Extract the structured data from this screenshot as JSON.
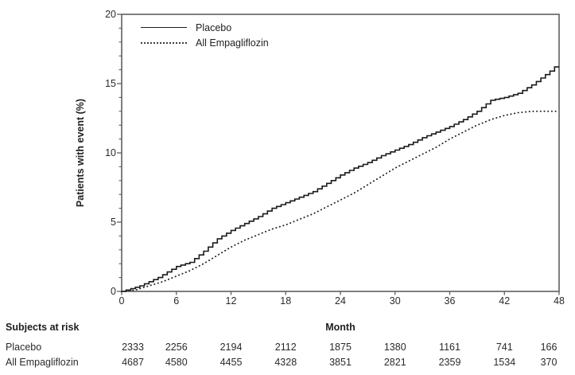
{
  "chart_data": {
    "type": "line",
    "subtype": "kaplan-meier-cumulative-incidence",
    "title": "",
    "xlabel": "Month",
    "ylabel": "Patients with event (%)",
    "xlim": [
      0,
      48
    ],
    "ylim": [
      0,
      20
    ],
    "x_ticks": [
      0,
      6,
      12,
      18,
      24,
      30,
      36,
      42,
      48
    ],
    "y_ticks": [
      0,
      5,
      10,
      15,
      20
    ],
    "y_minor_tick_step": 1,
    "grid": false,
    "frame": "full-box",
    "legend_position": "top-left-inside",
    "series": [
      {
        "name": "Placebo",
        "line_style": "solid",
        "color": "#1a1a1a",
        "interpolation": "step-after",
        "x": [
          0,
          1,
          2,
          3,
          4,
          5,
          6,
          7.5,
          9,
          10.5,
          12,
          13.5,
          15,
          16.5,
          18,
          19.5,
          21,
          22.5,
          24,
          25.5,
          27,
          28.5,
          30,
          31.5,
          33,
          34.5,
          36,
          37.5,
          39,
          40.5,
          42,
          43.5,
          45,
          46,
          47,
          47.5,
          48
        ],
        "y": [
          0,
          0.2,
          0.4,
          0.7,
          1.0,
          1.4,
          1.8,
          2.1,
          2.9,
          3.8,
          4.4,
          4.9,
          5.4,
          6.0,
          6.4,
          6.8,
          7.2,
          7.8,
          8.4,
          8.9,
          9.3,
          9.8,
          10.2,
          10.6,
          11.1,
          11.5,
          11.9,
          12.4,
          13.0,
          13.8,
          14.0,
          14.3,
          14.9,
          15.4,
          15.9,
          16.2,
          16.2
        ]
      },
      {
        "name": "All Empagliflozin",
        "line_style": "dotted",
        "color": "#1a1a1a",
        "interpolation": "linear",
        "x": [
          0,
          1.5,
          3,
          4.5,
          6,
          7.5,
          9,
          10.5,
          12,
          13.5,
          15,
          16.5,
          18,
          19.5,
          21,
          22.5,
          24,
          25.5,
          27,
          28.5,
          30,
          31.5,
          33,
          34.5,
          36,
          37.5,
          39,
          40.5,
          42,
          43.5,
          45,
          48
        ],
        "y": [
          0,
          0.1,
          0.4,
          0.7,
          1.1,
          1.5,
          2.0,
          2.6,
          3.2,
          3.7,
          4.1,
          4.5,
          4.8,
          5.2,
          5.6,
          6.1,
          6.6,
          7.1,
          7.7,
          8.3,
          8.9,
          9.4,
          9.9,
          10.4,
          11.0,
          11.5,
          12.0,
          12.4,
          12.7,
          12.9,
          13.0,
          13.0
        ]
      }
    ]
  },
  "risk_table": {
    "heading": "Subjects at risk",
    "months": [
      0,
      6,
      12,
      18,
      24,
      30,
      36,
      42,
      48
    ],
    "rows": [
      {
        "label": "Placebo",
        "counts": [
          "2333",
          "2256",
          "2194",
          "2112",
          "1875",
          "1380",
          "1161",
          "741",
          "166"
        ]
      },
      {
        "label": "All Empagliflozin",
        "counts": [
          "4687",
          "4580",
          "4455",
          "4328",
          "3851",
          "2821",
          "2359",
          "1534",
          "370"
        ]
      }
    ]
  },
  "colors": {
    "curve": "#1a1a1a",
    "frame": "#5f5f5f",
    "text": "#222222",
    "background": "#ffffff"
  }
}
